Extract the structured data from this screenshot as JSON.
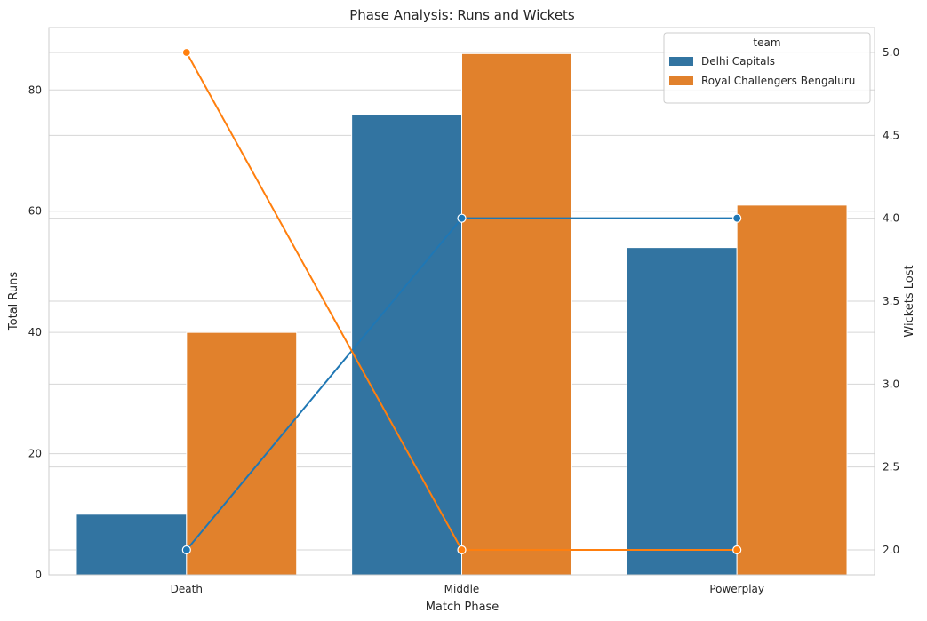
{
  "chart_data": {
    "type": "bar",
    "title": "Phase Analysis: Runs and Wickets",
    "xlabel": "Match Phase",
    "ylabel": "Total Runs",
    "y2label": "Wickets Lost",
    "categories": [
      "Death",
      "Middle",
      "Powerplay"
    ],
    "ylim": [
      0,
      90.3
    ],
    "y2lim": [
      1.85,
      5.15
    ],
    "yticks": [
      0,
      20,
      40,
      60,
      80
    ],
    "y2ticks": [
      2.0,
      2.5,
      3.0,
      3.5,
      4.0,
      4.5,
      5.0
    ],
    "grid": true,
    "legend": {
      "title": "team",
      "placement": "top-right",
      "entries": [
        "Delhi Capitals",
        "Royal Challengers Bengaluru"
      ]
    },
    "series": [
      {
        "name": "Delhi Capitals",
        "kind": "bar",
        "axis": "left",
        "color": "#3274a1",
        "values": [
          10,
          76,
          54
        ]
      },
      {
        "name": "Royal Challengers Bengaluru",
        "kind": "bar",
        "axis": "left",
        "color": "#e1812c",
        "values": [
          40,
          86,
          61
        ]
      },
      {
        "name": "Delhi Capitals",
        "kind": "line",
        "axis": "right",
        "color": "#1f77b4",
        "values": [
          2,
          4,
          4
        ]
      },
      {
        "name": "Royal Challengers Bengaluru",
        "kind": "line",
        "axis": "right",
        "color": "#ff7f0e",
        "values": [
          5,
          2,
          2
        ]
      }
    ]
  }
}
